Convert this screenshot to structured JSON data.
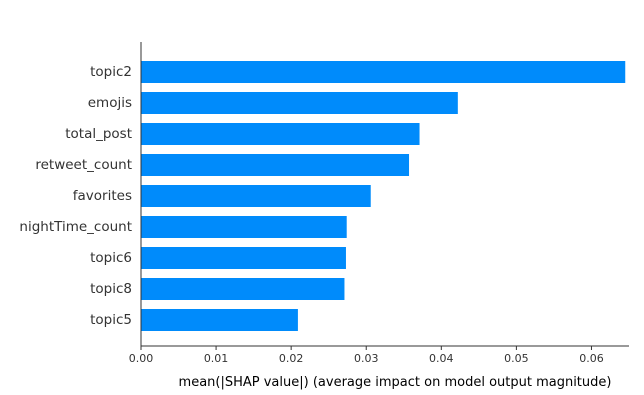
{
  "chart_data": {
    "type": "bar",
    "orientation": "horizontal",
    "categories": [
      "topic2",
      "emojis",
      "total_post",
      "retweet_count",
      "favorites",
      "nightTime_count",
      "topic6",
      "topic8",
      "topic5"
    ],
    "values": [
      0.0645,
      0.0422,
      0.0371,
      0.0357,
      0.0306,
      0.0274,
      0.0273,
      0.0271,
      0.0209
    ],
    "xlabel": "mean(|SHAP value|) (average impact on model output magnitude)",
    "ylabel": "",
    "title": "",
    "xlim": [
      0,
      0.065
    ],
    "xticks": [
      "0.00",
      "0.01",
      "0.02",
      "0.03",
      "0.04",
      "0.05",
      "0.06"
    ],
    "bar_color": "#008bfb",
    "grid": false
  }
}
